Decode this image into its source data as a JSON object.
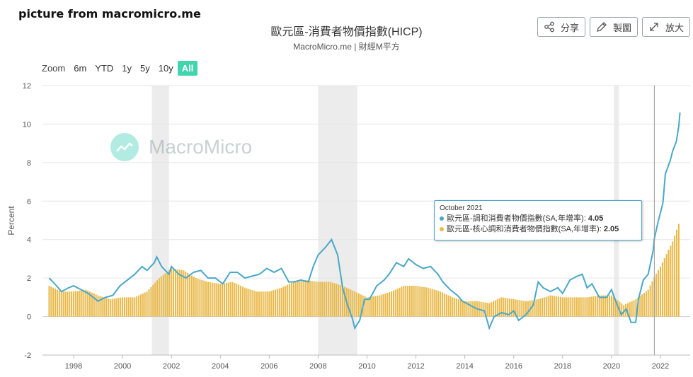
{
  "source_note": "picture from macromicro.me",
  "header": {
    "title": "歐元區-消費者物價指數(HICP)",
    "subtitle": "MacroMicro.me | 財經M平方"
  },
  "toolbar": {
    "share_label": "分享",
    "draw_label": "製圖",
    "zoom_label": "放大",
    "share_icon": "share-icon",
    "draw_icon": "pencil-icon",
    "zoom_icon": "expand-icon"
  },
  "range_selector": {
    "label": "Zoom",
    "options": [
      "6m",
      "YTD",
      "1y",
      "5y",
      "10y",
      "All"
    ],
    "selected": "All",
    "accent": "#41d5ae"
  },
  "watermark": {
    "text": "MacroMicro",
    "icon": "macromicro-logo-icon"
  },
  "tooltip": {
    "date": "October 2021",
    "rows": [
      {
        "label": "歐元區-調和消費者物價指數(SA,年增率): ",
        "value": "4.05",
        "color": "#4aa8c8"
      },
      {
        "label": "歐元區-核心調和消費者物價指數(SA,年增率): ",
        "value": "2.05",
        "color": "#e9b949"
      }
    ]
  },
  "chart_data": {
    "type": "line",
    "ylabel": "Percent",
    "ylim": [
      -2,
      12
    ],
    "yticks": [
      "-2",
      "0",
      "2",
      "4",
      "6",
      "8",
      "10",
      "12"
    ],
    "xlim": [
      1997.0,
      2022.9
    ],
    "xticks": [
      "1998",
      "2000",
      "2002",
      "2004",
      "2006",
      "2008",
      "2010",
      "2012",
      "2014",
      "2016",
      "2018",
      "2020",
      "2022"
    ],
    "grid": true,
    "recession_bands": [
      [
        2001.2,
        2001.9
      ],
      [
        2008.0,
        2009.6
      ],
      [
        2020.1,
        2020.3
      ]
    ],
    "crosshair_x": 2021.75,
    "series": [
      {
        "name": "歐元區-調和消費者物價指數(SA,年增率)",
        "type": "line",
        "color": "#4aa8c8",
        "points": [
          [
            1997.0,
            2.0
          ],
          [
            1997.3,
            1.6
          ],
          [
            1997.5,
            1.3
          ],
          [
            1997.8,
            1.5
          ],
          [
            1998.0,
            1.6
          ],
          [
            1998.3,
            1.4
          ],
          [
            1998.6,
            1.2
          ],
          [
            1998.9,
            0.9
          ],
          [
            1999.0,
            0.8
          ],
          [
            1999.3,
            1.0
          ],
          [
            1999.6,
            1.1
          ],
          [
            1999.9,
            1.6
          ],
          [
            2000.2,
            1.9
          ],
          [
            2000.5,
            2.2
          ],
          [
            2000.8,
            2.6
          ],
          [
            2001.0,
            2.4
          ],
          [
            2001.3,
            2.8
          ],
          [
            2001.4,
            3.1
          ],
          [
            2001.6,
            2.6
          ],
          [
            2001.9,
            2.2
          ],
          [
            2002.0,
            2.6
          ],
          [
            2002.3,
            2.2
          ],
          [
            2002.6,
            2.0
          ],
          [
            2002.9,
            2.3
          ],
          [
            2003.2,
            2.4
          ],
          [
            2003.5,
            2.0
          ],
          [
            2003.8,
            2.0
          ],
          [
            2004.1,
            1.7
          ],
          [
            2004.4,
            2.3
          ],
          [
            2004.7,
            2.3
          ],
          [
            2005.0,
            2.0
          ],
          [
            2005.3,
            2.1
          ],
          [
            2005.6,
            2.2
          ],
          [
            2005.9,
            2.5
          ],
          [
            2006.2,
            2.3
          ],
          [
            2006.5,
            2.5
          ],
          [
            2006.8,
            1.8
          ],
          [
            2007.0,
            1.8
          ],
          [
            2007.3,
            1.9
          ],
          [
            2007.6,
            1.8
          ],
          [
            2007.8,
            2.6
          ],
          [
            2008.0,
            3.2
          ],
          [
            2008.3,
            3.6
          ],
          [
            2008.55,
            4.0
          ],
          [
            2008.8,
            3.2
          ],
          [
            2009.0,
            1.5
          ],
          [
            2009.2,
            0.6
          ],
          [
            2009.4,
            -0.1
          ],
          [
            2009.5,
            -0.6
          ],
          [
            2009.7,
            -0.2
          ],
          [
            2009.9,
            0.9
          ],
          [
            2010.1,
            0.9
          ],
          [
            2010.4,
            1.6
          ],
          [
            2010.7,
            1.9
          ],
          [
            2010.9,
            2.2
          ],
          [
            2011.2,
            2.8
          ],
          [
            2011.5,
            2.6
          ],
          [
            2011.7,
            3.0
          ],
          [
            2012.0,
            2.7
          ],
          [
            2012.3,
            2.5
          ],
          [
            2012.6,
            2.6
          ],
          [
            2012.9,
            2.2
          ],
          [
            2013.1,
            1.8
          ],
          [
            2013.4,
            1.4
          ],
          [
            2013.7,
            1.1
          ],
          [
            2013.9,
            0.8
          ],
          [
            2014.2,
            0.6
          ],
          [
            2014.5,
            0.4
          ],
          [
            2014.8,
            0.3
          ],
          [
            2015.0,
            -0.6
          ],
          [
            2015.2,
            0.0
          ],
          [
            2015.5,
            0.2
          ],
          [
            2015.8,
            0.1
          ],
          [
            2016.0,
            0.3
          ],
          [
            2016.2,
            -0.2
          ],
          [
            2016.5,
            0.1
          ],
          [
            2016.8,
            0.6
          ],
          [
            2017.0,
            1.8
          ],
          [
            2017.2,
            1.5
          ],
          [
            2017.5,
            1.3
          ],
          [
            2017.8,
            1.5
          ],
          [
            2018.0,
            1.2
          ],
          [
            2018.3,
            1.9
          ],
          [
            2018.6,
            2.1
          ],
          [
            2018.8,
            2.2
          ],
          [
            2019.0,
            1.5
          ],
          [
            2019.2,
            1.7
          ],
          [
            2019.5,
            1.0
          ],
          [
            2019.8,
            1.0
          ],
          [
            2020.0,
            1.4
          ],
          [
            2020.2,
            0.7
          ],
          [
            2020.4,
            0.1
          ],
          [
            2020.6,
            0.4
          ],
          [
            2020.8,
            -0.3
          ],
          [
            2020.99,
            -0.3
          ],
          [
            2021.1,
            0.9
          ],
          [
            2021.3,
            1.9
          ],
          [
            2021.5,
            2.2
          ],
          [
            2021.7,
            3.4
          ],
          [
            2021.75,
            4.05
          ],
          [
            2021.9,
            4.9
          ],
          [
            2022.1,
            5.9
          ],
          [
            2022.2,
            7.4
          ],
          [
            2022.4,
            8.1
          ],
          [
            2022.5,
            8.6
          ],
          [
            2022.65,
            9.1
          ],
          [
            2022.75,
            9.9
          ],
          [
            2022.8,
            10.6
          ]
        ]
      },
      {
        "name": "歐元區-核心調和消費者物價指數(SA,年增率)",
        "type": "bar",
        "color": "#e9b949",
        "points": [
          [
            1997.0,
            1.6
          ],
          [
            1997.5,
            1.3
          ],
          [
            1998.0,
            1.3
          ],
          [
            1998.5,
            1.4
          ],
          [
            1999.0,
            1.1
          ],
          [
            1999.5,
            0.9
          ],
          [
            2000.0,
            1.0
          ],
          [
            2000.5,
            1.0
          ],
          [
            2001.0,
            1.3
          ],
          [
            2001.5,
            2.0
          ],
          [
            2002.0,
            2.5
          ],
          [
            2002.5,
            2.4
          ],
          [
            2003.0,
            2.0
          ],
          [
            2003.5,
            1.8
          ],
          [
            2004.0,
            1.7
          ],
          [
            2004.5,
            1.8
          ],
          [
            2005.0,
            1.5
          ],
          [
            2005.5,
            1.3
          ],
          [
            2006.0,
            1.3
          ],
          [
            2006.5,
            1.5
          ],
          [
            2007.0,
            1.8
          ],
          [
            2007.5,
            1.9
          ],
          [
            2008.0,
            1.8
          ],
          [
            2008.5,
            1.8
          ],
          [
            2009.0,
            1.6
          ],
          [
            2009.5,
            1.3
          ],
          [
            2010.0,
            1.0
          ],
          [
            2010.5,
            1.1
          ],
          [
            2011.0,
            1.3
          ],
          [
            2011.5,
            1.6
          ],
          [
            2012.0,
            1.6
          ],
          [
            2012.5,
            1.5
          ],
          [
            2013.0,
            1.3
          ],
          [
            2013.5,
            1.0
          ],
          [
            2014.0,
            0.8
          ],
          [
            2014.5,
            0.8
          ],
          [
            2015.0,
            0.7
          ],
          [
            2015.5,
            1.0
          ],
          [
            2016.0,
            0.9
          ],
          [
            2016.5,
            0.8
          ],
          [
            2017.0,
            0.9
          ],
          [
            2017.5,
            1.1
          ],
          [
            2018.0,
            1.0
          ],
          [
            2018.5,
            1.0
          ],
          [
            2019.0,
            1.0
          ],
          [
            2019.5,
            1.1
          ],
          [
            2020.0,
            1.1
          ],
          [
            2020.5,
            0.6
          ],
          [
            2021.0,
            0.9
          ],
          [
            2021.5,
            1.4
          ],
          [
            2021.75,
            2.05
          ],
          [
            2022.0,
            2.6
          ],
          [
            2022.5,
            3.9
          ],
          [
            2022.8,
            5.0
          ]
        ]
      }
    ]
  }
}
